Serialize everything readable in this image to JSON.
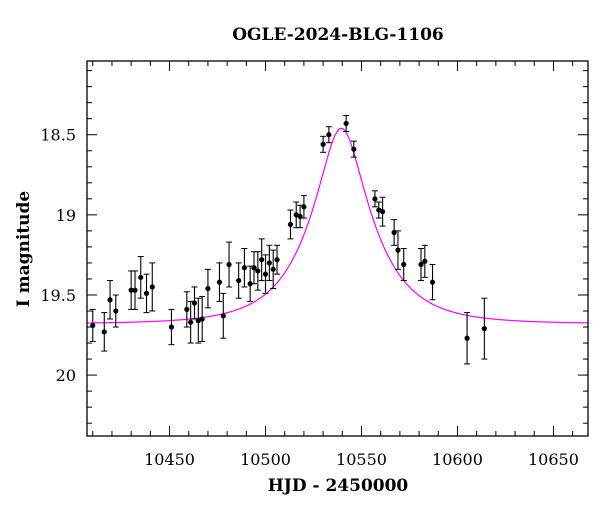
{
  "chart_data": {
    "type": "scatter",
    "title": "OGLE-2024-BLG-1106",
    "xlabel": "HJD - 2450000",
    "ylabel": "I magnitude",
    "xlim": [
      10407,
      10668
    ],
    "ylim": [
      20.38,
      18.04
    ],
    "y_inverted": true,
    "grid": false,
    "x_major_ticks": [
      10450,
      10500,
      10550,
      10600,
      10650
    ],
    "x_tick_labels": [
      "10450",
      "10500",
      "10550",
      "10600",
      "10650"
    ],
    "x_minor_step": 10,
    "y_major_ticks": [
      18.5,
      19,
      19.5,
      20
    ],
    "y_tick_labels": [
      "18.5",
      "19",
      "19.5",
      "20"
    ],
    "y_minor_step": 0.1,
    "model_color": "#ff00ff",
    "point_color": "#000000",
    "model": {
      "name": "",
      "t0": 10539.5,
      "tE": 30.2,
      "u0": 0.36,
      "baseline_mag": 19.68,
      "peak_mag": 18.46
    },
    "series": [
      {
        "name": "",
        "x": [
          10410,
          10416,
          10419,
          10422,
          10430,
          10432,
          10435,
          10438,
          10441,
          10451,
          10459,
          10461,
          10463,
          10465,
          10467,
          10470,
          10476,
          10478,
          10481,
          10486,
          10489,
          10492,
          10494,
          10496,
          10498,
          10500,
          10502,
          10504,
          10506,
          10513,
          10516,
          10518,
          10520,
          10530,
          10533,
          10542,
          10546,
          10557,
          10559,
          10561,
          10567,
          10569,
          10572,
          10581,
          10583,
          10587,
          10605,
          10614
        ],
        "y": [
          19.69,
          19.73,
          19.53,
          19.6,
          19.47,
          19.47,
          19.39,
          19.49,
          19.45,
          19.7,
          19.59,
          19.67,
          19.55,
          19.66,
          19.65,
          19.46,
          19.42,
          19.63,
          19.31,
          19.41,
          19.33,
          19.43,
          19.33,
          19.35,
          19.28,
          19.37,
          19.3,
          19.34,
          19.28,
          19.06,
          19.0,
          19.01,
          18.95,
          18.56,
          18.5,
          18.43,
          18.59,
          18.9,
          18.97,
          18.98,
          19.11,
          19.22,
          19.31,
          19.31,
          19.29,
          19.42,
          19.77,
          19.71
        ],
        "err": [
          0.1,
          0.12,
          0.12,
          0.1,
          0.12,
          0.12,
          0.13,
          0.12,
          0.15,
          0.11,
          0.11,
          0.13,
          0.1,
          0.14,
          0.14,
          0.12,
          0.12,
          0.14,
          0.14,
          0.11,
          0.12,
          0.11,
          0.1,
          0.12,
          0.13,
          0.12,
          0.11,
          0.12,
          0.09,
          0.09,
          0.08,
          0.07,
          0.07,
          0.05,
          0.05,
          0.05,
          0.05,
          0.05,
          0.05,
          0.09,
          0.08,
          0.12,
          0.1,
          0.1,
          0.1,
          0.11,
          0.16,
          0.19
        ]
      }
    ]
  }
}
